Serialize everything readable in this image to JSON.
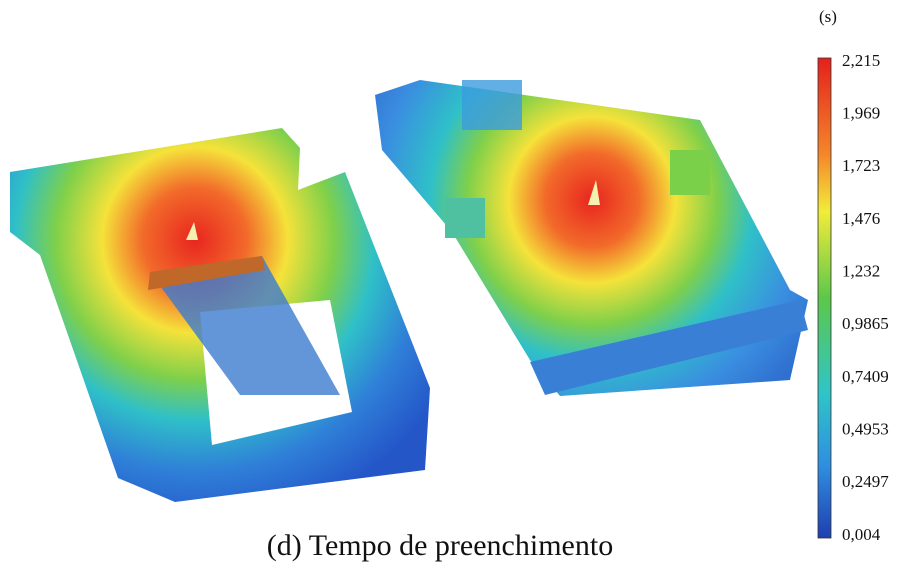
{
  "legend": {
    "unit": "(s)",
    "labels": [
      "2,215",
      "1,969",
      "1,723",
      "1,476",
      "1,232",
      "0,9865",
      "0,7409",
      "0,4953",
      "0,2497",
      "0,004"
    ]
  },
  "caption": "(d) Tempo de preenchimento"
}
